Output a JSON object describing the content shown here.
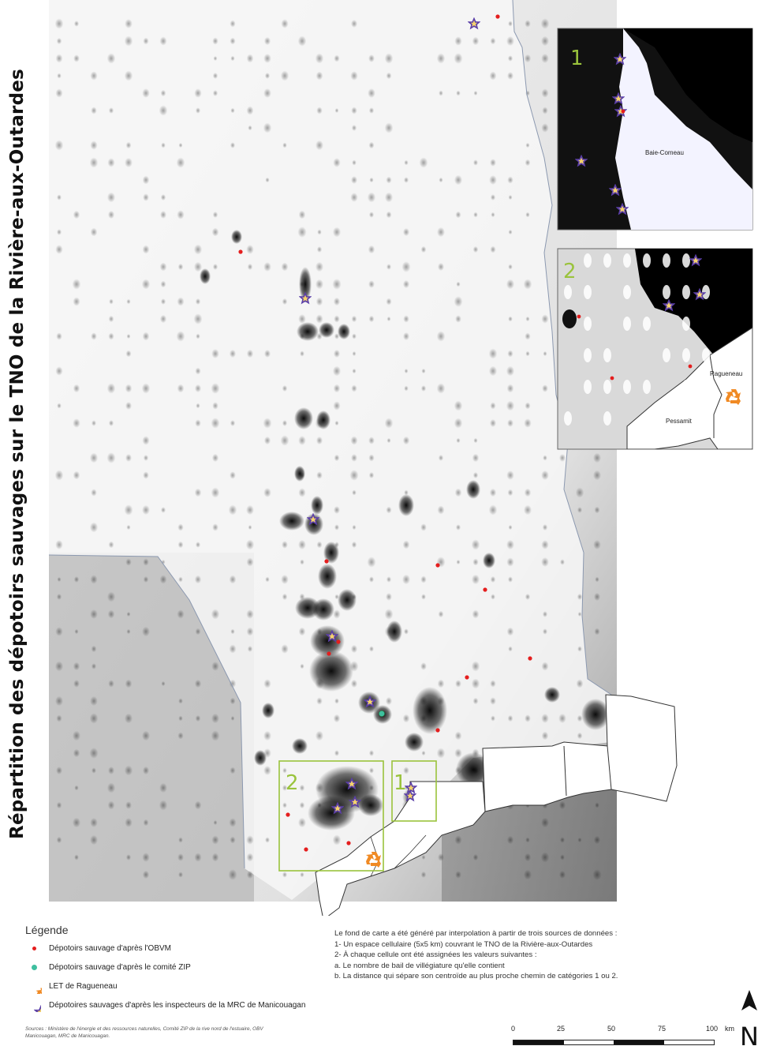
{
  "title": "Répartition des dépotoirs sauvages sur le TNO de la Rivière-aux-Outardes",
  "inset_labels": {
    "inset1": "1",
    "inset2": "2",
    "place_baie_comeau": "Baie-Comeau",
    "place_ragueneau": "Ragueneau",
    "place_pessamit": "Pessamit"
  },
  "legend": {
    "title": "Légende",
    "items": [
      {
        "label": "Dépotoirs sauvage d'après l'OBVM",
        "symbol": "red-dot-icon",
        "color": "#e41e1e"
      },
      {
        "label": "Dépotoirs sauvage d'après le comité ZIP",
        "symbol": "teal-dot-icon",
        "color": "#3fbf9f"
      },
      {
        "label": "LET de Ragueneau",
        "symbol": "recycle-icon",
        "color": "#f08a24"
      },
      {
        "label": "Dépotoires sauvages d'après les inspecteurs de la MRC de Manicouagan",
        "symbol": "star-icon",
        "color": "#5b3fa8"
      }
    ]
  },
  "notes": [
    "Le fond de carte a été généré par interpolation à partir de trois sources de données :",
    "1- Un espace cellulaire (5x5 km) couvrant le TNO de la Rivière-aux-Outardes",
    "2- À chaque cellule ont été assignées les valeurs suivantes :",
    "a. Le nombre de bail de villégiature qu'elle contient",
    "b. La distance qui sépare son centroïde au plus proche chemin de catégories 1 ou 2."
  ],
  "sources": "Sources : Ministère de l'énergie et des ressources naturelles, Comité ZIP de la rive nord de l'estuaire, OBV Manicouagan, MRC de Manicouagan.",
  "scale": {
    "ticks": [
      "0",
      "25",
      "50",
      "75",
      "100"
    ],
    "unit": "km"
  },
  "north_label": "N",
  "colors": {
    "frame": "#9ac33c",
    "inset_number": "#9ac33c",
    "red_dot": "#e41e1e",
    "star": "#5b3fa8",
    "star_fill": "#f5d36c"
  }
}
